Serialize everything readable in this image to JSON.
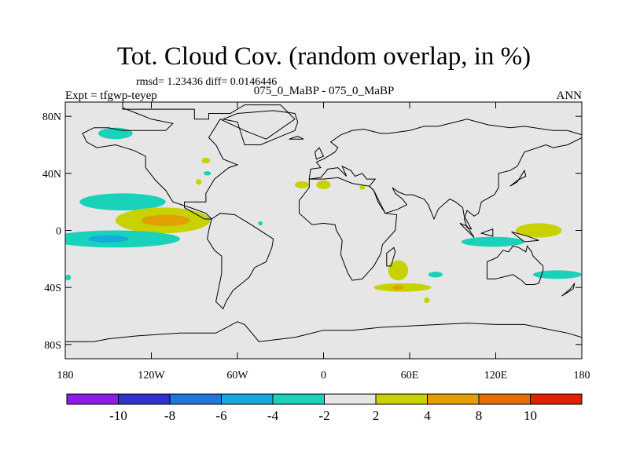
{
  "chart_data": {
    "type": "heatmap",
    "title": "Tot. Cloud Cov. (random overlap, in %)",
    "stats": "rmsd= 1.23436 diff= 0.0146446",
    "left_label": "Expt = tfgwp-teyep",
    "center_label": "075_0_MaBP - 075_0_MaBP",
    "right_label": "ANN",
    "x_ticks": [
      {
        "value": -180,
        "label": "180"
      },
      {
        "value": -120,
        "label": "120W"
      },
      {
        "value": -60,
        "label": "60W"
      },
      {
        "value": 0,
        "label": "0"
      },
      {
        "value": 60,
        "label": "60E"
      },
      {
        "value": 120,
        "label": "120E"
      },
      {
        "value": 180,
        "label": "180"
      }
    ],
    "y_ticks": [
      {
        "value": 80,
        "label": "80N"
      },
      {
        "value": 40,
        "label": "40N"
      },
      {
        "value": 0,
        "label": "0"
      },
      {
        "value": -40,
        "label": "40S"
      },
      {
        "value": -80,
        "label": "80S"
      }
    ],
    "xlim": [
      -180,
      180
    ],
    "ylim": [
      -90,
      90
    ],
    "colorbar": {
      "colors": [
        "#8a1ee6",
        "#3232d2",
        "#1e78dc",
        "#14aadc",
        "#19d2b9",
        "#e6e6e6",
        "#c8d200",
        "#e1a000",
        "#e66e00",
        "#e61e00"
      ],
      "labels": [
        {
          "after_box": 1,
          "text": "-10"
        },
        {
          "after_box": 2,
          "text": "-8"
        },
        {
          "after_box": 3,
          "text": "-6"
        },
        {
          "after_box": 4,
          "text": "-4"
        },
        {
          "after_box": 5,
          "text": "-2"
        },
        {
          "after_box": 6,
          "text": "2"
        },
        {
          "after_box": 7,
          "text": "4"
        },
        {
          "after_box": 8,
          "text": "8"
        },
        {
          "after_box": 9,
          "text": "10"
        }
      ]
    },
    "anomalies": [
      {
        "lon": -145,
        "lat": 68,
        "rlon": 12,
        "rlat": 4,
        "level": -3
      },
      {
        "lon": -140,
        "lat": 20,
        "rlon": 30,
        "rlat": 6,
        "level": -3
      },
      {
        "lon": -112,
        "lat": 7,
        "rlon": 33,
        "rlat": 9,
        "level": 3
      },
      {
        "lon": -110,
        "lat": 7,
        "rlon": 17,
        "rlat": 4,
        "level": 5
      },
      {
        "lon": -145,
        "lat": -6,
        "rlon": 45,
        "rlat": 6,
        "level": -3
      },
      {
        "lon": -150,
        "lat": -6,
        "rlon": 14,
        "rlat": 2.5,
        "level": -5
      },
      {
        "lon": -82,
        "lat": 49,
        "rlon": 3,
        "rlat": 2,
        "level": 3
      },
      {
        "lon": -87,
        "lat": 34,
        "rlon": 2,
        "rlat": 2,
        "level": 3
      },
      {
        "lon": -81,
        "lat": 40,
        "rlon": 2.5,
        "rlat": 1.5,
        "level": -3
      },
      {
        "lon": -15,
        "lat": 32,
        "rlon": 5,
        "rlat": 2.5,
        "level": 3
      },
      {
        "lon": 0,
        "lat": 32,
        "rlon": 5,
        "rlat": 3,
        "level": 3
      },
      {
        "lon": 27,
        "lat": 30,
        "rlon": 2,
        "rlat": 1.5,
        "level": 3
      },
      {
        "lon": 52,
        "lat": -28,
        "rlon": 7,
        "rlat": 7,
        "level": 3
      },
      {
        "lon": 55,
        "lat": -40,
        "rlon": 20,
        "rlat": 3,
        "level": 3
      },
      {
        "lon": 52,
        "lat": -40,
        "rlon": 4,
        "rlat": 1.5,
        "level": 5
      },
      {
        "lon": 78,
        "lat": -31,
        "rlon": 5,
        "rlat": 2,
        "level": -3
      },
      {
        "lon": 72,
        "lat": -49,
        "rlon": 2,
        "rlat": 2,
        "level": 3
      },
      {
        "lon": 118,
        "lat": -8,
        "rlon": 22,
        "rlat": 3.5,
        "level": -3
      },
      {
        "lon": 150,
        "lat": 0,
        "rlon": 16,
        "rlat": 5,
        "level": 3
      },
      {
        "lon": 163,
        "lat": -31,
        "rlon": 17,
        "rlat": 3,
        "level": -3
      },
      {
        "lon": -178,
        "lat": -33,
        "rlon": 2,
        "rlat": 2,
        "level": -3
      },
      {
        "lon": -44,
        "lat": 5,
        "rlon": 1.5,
        "rlat": 1.5,
        "level": -3
      }
    ],
    "continents": [
      [
        [
          -140,
          90
        ],
        [
          -140,
          85
        ],
        [
          -90,
          85
        ],
        [
          -90,
          78
        ],
        [
          -80,
          78
        ],
        [
          -80,
          82
        ],
        [
          -65,
          82
        ],
        [
          -55,
          88
        ],
        [
          -30,
          88
        ],
        [
          -20,
          78
        ],
        [
          -40,
          64
        ],
        [
          -55,
          70
        ],
        [
          -72,
          78
        ],
        [
          -80,
          65
        ],
        [
          -75,
          60
        ],
        [
          -70,
          50
        ],
        [
          -60,
          46
        ],
        [
          -66,
          44
        ],
        [
          -76,
          36
        ],
        [
          -82,
          26
        ],
        [
          -82,
          20
        ],
        [
          -90,
          20
        ],
        [
          -97,
          20
        ],
        [
          -97,
          16
        ],
        [
          -90,
          12
        ],
        [
          -83,
          8
        ],
        [
          -78,
          8
        ],
        [
          -82,
          12
        ],
        [
          -93,
          16
        ],
        [
          -105,
          20
        ],
        [
          -110,
          28
        ],
        [
          -117,
          35
        ],
        [
          -124,
          44
        ],
        [
          -124,
          52
        ],
        [
          -132,
          56
        ],
        [
          -145,
          60
        ],
        [
          -158,
          58
        ],
        [
          -165,
          62
        ],
        [
          -168,
          68
        ],
        [
          -160,
          72
        ],
        [
          -150,
          72
        ],
        [
          -140,
          70
        ],
        [
          -125,
          70
        ],
        [
          -110,
          70
        ],
        [
          -105,
          75
        ],
        [
          -120,
          78
        ],
        [
          -130,
          82
        ],
        [
          -140,
          86
        ],
        [
          -140,
          90
        ]
      ],
      [
        [
          -78,
          8
        ],
        [
          -72,
          12
        ],
        [
          -62,
          11
        ],
        [
          -52,
          5
        ],
        [
          -35,
          -6
        ],
        [
          -36,
          -12
        ],
        [
          -40,
          -22
        ],
        [
          -48,
          -26
        ],
        [
          -52,
          -33
        ],
        [
          -58,
          -38
        ],
        [
          -63,
          -42
        ],
        [
          -68,
          -50
        ],
        [
          -70,
          -55
        ],
        [
          -75,
          -50
        ],
        [
          -73,
          -40
        ],
        [
          -71,
          -30
        ],
        [
          -71,
          -18
        ],
        [
          -76,
          -14
        ],
        [
          -81,
          -6
        ],
        [
          -80,
          0
        ],
        [
          -78,
          8
        ]
      ],
      [
        [
          -10,
          36
        ],
        [
          -5,
          36
        ],
        [
          0,
          36
        ],
        [
          10,
          37
        ],
        [
          20,
          33
        ],
        [
          32,
          31
        ],
        [
          35,
          28
        ],
        [
          43,
          12
        ],
        [
          51,
          11
        ],
        [
          50,
          0
        ],
        [
          41,
          -10
        ],
        [
          40,
          -16
        ],
        [
          35,
          -25
        ],
        [
          27,
          -34
        ],
        [
          20,
          -35
        ],
        [
          17,
          -30
        ],
        [
          12,
          -17
        ],
        [
          13,
          -7
        ],
        [
          9,
          0
        ],
        [
          8,
          4
        ],
        [
          0,
          5
        ],
        [
          -8,
          4
        ],
        [
          -17,
          12
        ],
        [
          -17,
          21
        ],
        [
          -10,
          30
        ],
        [
          -10,
          36
        ]
      ],
      [
        [
          -10,
          36
        ],
        [
          -9,
          43
        ],
        [
          -2,
          44
        ],
        [
          -5,
          48
        ],
        [
          0,
          50
        ],
        [
          8,
          55
        ],
        [
          10,
          58
        ],
        [
          5,
          62
        ],
        [
          12,
          67
        ],
        [
          20,
          70
        ],
        [
          28,
          71
        ],
        [
          40,
          68
        ],
        [
          45,
          68
        ],
        [
          60,
          70
        ],
        [
          70,
          73
        ],
        [
          80,
          73
        ],
        [
          100,
          78
        ],
        [
          115,
          74
        ],
        [
          130,
          72
        ],
        [
          140,
          73
        ],
        [
          160,
          70
        ],
        [
          170,
          70
        ],
        [
          180,
          67
        ],
        [
          180,
          65
        ],
        [
          170,
          60
        ],
        [
          160,
          58
        ],
        [
          155,
          60
        ],
        [
          140,
          55
        ],
        [
          135,
          45
        ],
        [
          130,
          42
        ],
        [
          122,
          40
        ],
        [
          122,
          30
        ],
        [
          119,
          25
        ],
        [
          110,
          20
        ],
        [
          108,
          12
        ],
        [
          105,
          10
        ],
        [
          100,
          14
        ],
        [
          98,
          8
        ],
        [
          100,
          2
        ],
        [
          103,
          1
        ],
        [
          98,
          10
        ],
        [
          97,
          16
        ],
        [
          92,
          20
        ],
        [
          88,
          22
        ],
        [
          80,
          15
        ],
        [
          77,
          8
        ],
        [
          73,
          18
        ],
        [
          70,
          22
        ],
        [
          62,
          25
        ],
        [
          57,
          25
        ],
        [
          52,
          27
        ],
        [
          48,
          30
        ],
        [
          50,
          26
        ],
        [
          55,
          22
        ],
        [
          58,
          18
        ],
        [
          52,
          15
        ],
        [
          43,
          12
        ],
        [
          38,
          20
        ],
        [
          35,
          28
        ],
        [
          32,
          31
        ],
        [
          36,
          36
        ],
        [
          30,
          36
        ],
        [
          27,
          40
        ],
        [
          22,
          38
        ],
        [
          19,
          42
        ],
        [
          13,
          45
        ],
        [
          16,
          38
        ],
        [
          10,
          44
        ],
        [
          3,
          43
        ],
        [
          -2,
          37
        ],
        [
          -10,
          36
        ]
      ],
      [
        [
          114,
          -22
        ],
        [
          114,
          -34
        ],
        [
          120,
          -34
        ],
        [
          128,
          -32
        ],
        [
          132,
          -31
        ],
        [
          138,
          -35
        ],
        [
          141,
          -38
        ],
        [
          147,
          -38
        ],
        [
          150,
          -37
        ],
        [
          153,
          -28
        ],
        [
          153,
          -25
        ],
        [
          150,
          -22
        ],
        [
          146,
          -18
        ],
        [
          145,
          -15
        ],
        [
          142,
          -11
        ],
        [
          141,
          -15
        ],
        [
          136,
          -12
        ],
        [
          132,
          -11
        ],
        [
          129,
          -15
        ],
        [
          125,
          -14
        ],
        [
          121,
          -19
        ],
        [
          114,
          -22
        ]
      ],
      [
        [
          -55,
          60
        ],
        [
          -44,
          60
        ],
        [
          -20,
          70
        ],
        [
          -18,
          76
        ],
        [
          -20,
          82
        ],
        [
          -35,
          84
        ],
        [
          -60,
          82
        ],
        [
          -70,
          78
        ],
        [
          -60,
          76
        ],
        [
          -55,
          60
        ]
      ],
      [
        [
          44,
          -25
        ],
        [
          47,
          -25
        ],
        [
          50,
          -15
        ],
        [
          49,
          -12
        ],
        [
          44,
          -16
        ],
        [
          44,
          -25
        ]
      ],
      [
        [
          -180,
          -90
        ],
        [
          -180,
          -78
        ],
        [
          -160,
          -78
        ],
        [
          -150,
          -76
        ],
        [
          -130,
          -74
        ],
        [
          -100,
          -72
        ],
        [
          -75,
          -72
        ],
        [
          -60,
          -64
        ],
        [
          -55,
          -66
        ],
        [
          -45,
          -78
        ],
        [
          -20,
          -75
        ],
        [
          0,
          -70
        ],
        [
          20,
          -70
        ],
        [
          40,
          -68
        ],
        [
          60,
          -67
        ],
        [
          80,
          -66
        ],
        [
          100,
          -65
        ],
        [
          120,
          -66
        ],
        [
          140,
          -66
        ],
        [
          160,
          -70
        ],
        [
          170,
          -72
        ],
        [
          180,
          -75
        ],
        [
          180,
          -90
        ],
        [
          -180,
          -90
        ]
      ],
      [
        [
          95,
          5
        ],
        [
          100,
          3
        ],
        [
          105,
          -5
        ],
        [
          100,
          0
        ],
        [
          95,
          5
        ]
      ],
      [
        [
          110,
          -2
        ],
        [
          118,
          1
        ],
        [
          118,
          -4
        ],
        [
          110,
          -2
        ]
      ],
      [
        [
          131,
          -1
        ],
        [
          142,
          -4
        ],
        [
          150,
          -7
        ],
        [
          140,
          -8
        ],
        [
          131,
          -1
        ]
      ],
      [
        [
          130,
          31
        ],
        [
          135,
          35
        ],
        [
          141,
          38
        ],
        [
          140,
          42
        ],
        [
          135,
          34
        ],
        [
          130,
          31
        ]
      ],
      [
        [
          -5,
          50
        ],
        [
          0,
          52
        ],
        [
          -3,
          58
        ],
        [
          -6,
          55
        ],
        [
          -5,
          50
        ]
      ],
      [
        [
          -24,
          64
        ],
        [
          -14,
          64
        ],
        [
          -18,
          66
        ],
        [
          -24,
          64
        ]
      ],
      [
        [
          166,
          -46
        ],
        [
          172,
          -41
        ],
        [
          175,
          -37
        ],
        [
          174,
          -41
        ],
        [
          166,
          -46
        ]
      ]
    ]
  }
}
